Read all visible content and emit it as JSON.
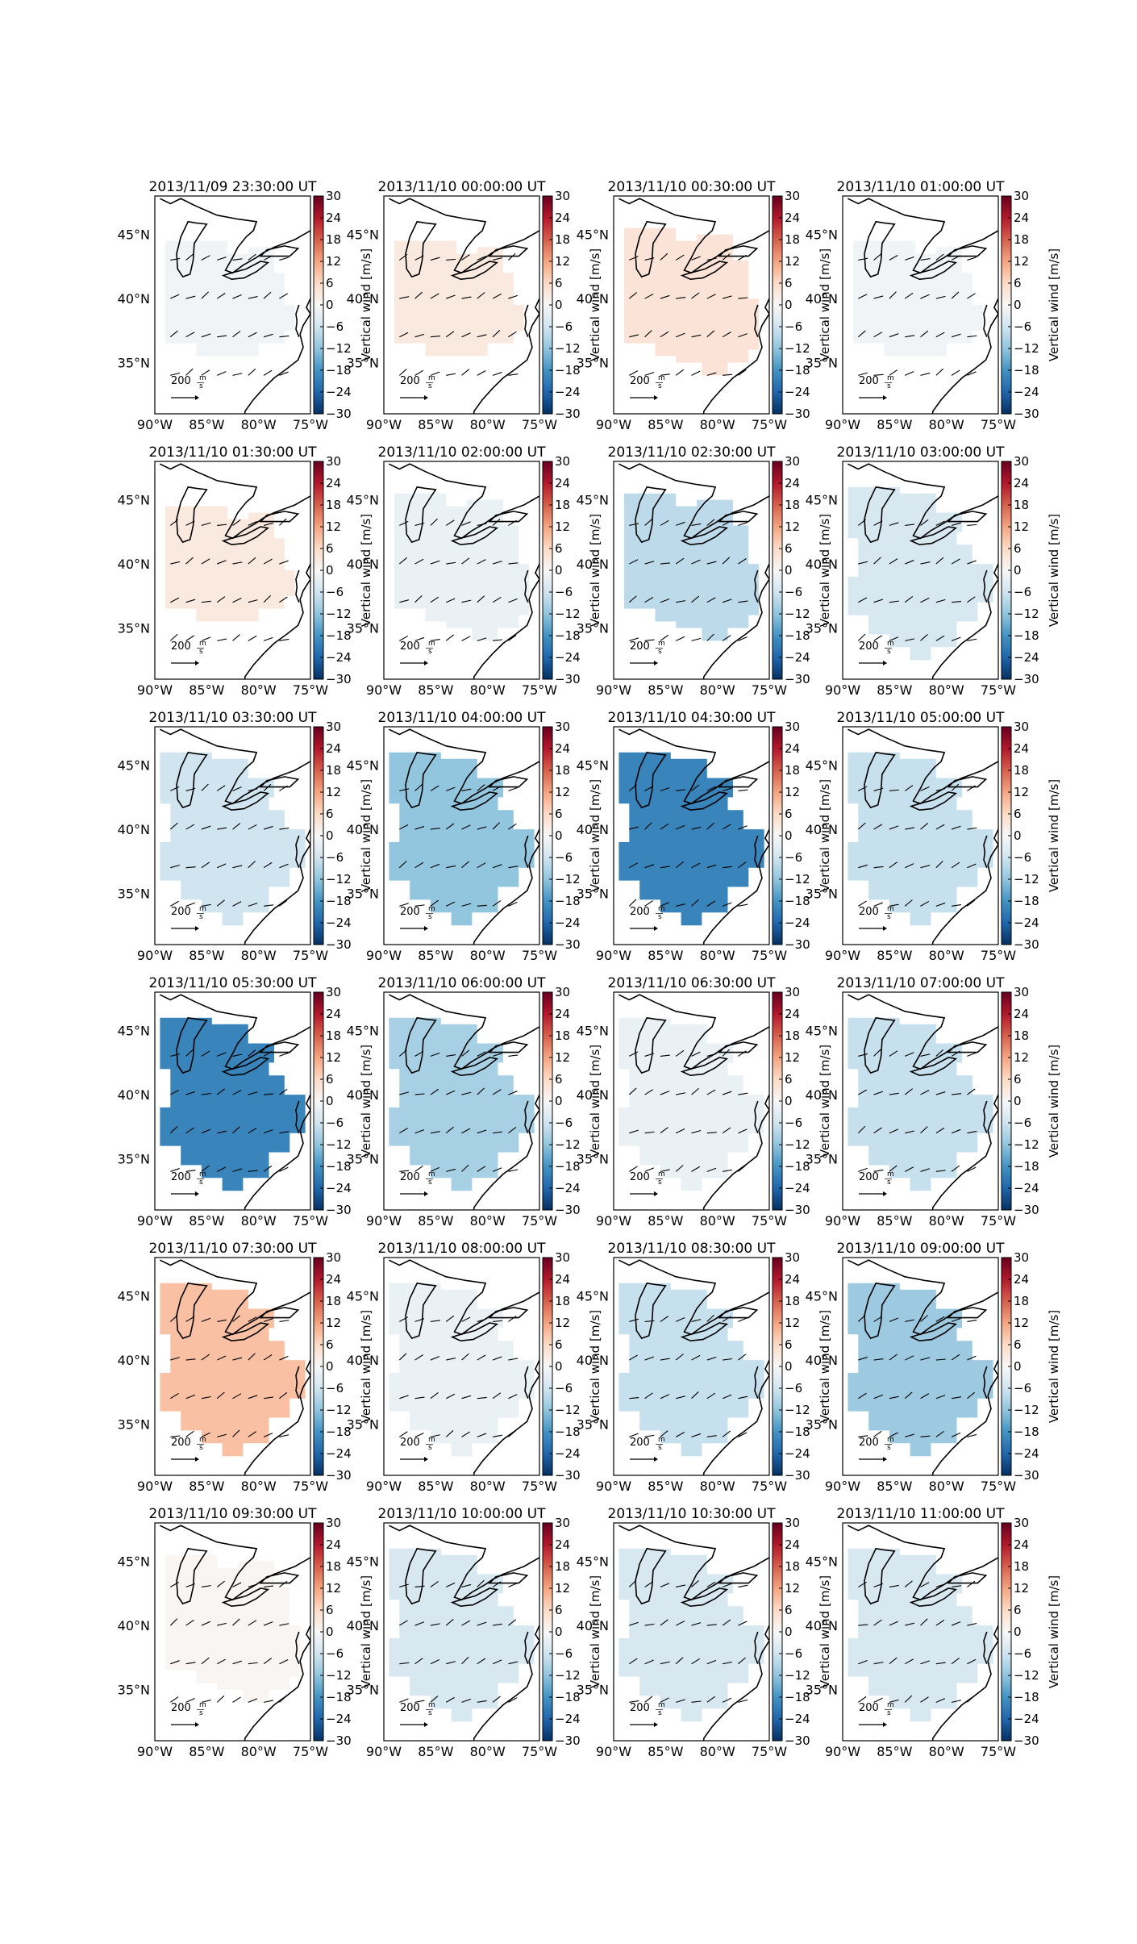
{
  "chart_data": {
    "type": "heatmap",
    "grid": {
      "rows": 6,
      "cols": 4
    },
    "map": {
      "lon_range": [
        -90,
        -75
      ],
      "lat_range": [
        31,
        48
      ],
      "x_ticks": [
        "90°W",
        "85°W",
        "80°W",
        "75°W"
      ],
      "y_ticks": [
        "45°N",
        "40°N",
        "35°N"
      ]
    },
    "colorbar": {
      "label": "Vertical wind [m/s]",
      "range": [
        -30,
        30
      ],
      "ticks": [
        "30",
        "24",
        "18",
        "12",
        "6",
        "0",
        "−6",
        "−12",
        "−18",
        "−24",
        "−30"
      ],
      "colormap": "RdBu_r"
    },
    "quiver_key": {
      "value": "200",
      "unit_num": "m",
      "unit_den": "s"
    },
    "panels": [
      {
        "title": "2013/11/09 23:30:00 UT",
        "vertical_wind": -1,
        "region": "small"
      },
      {
        "title": "2013/11/10 00:00:00 UT",
        "vertical_wind": 3,
        "region": "small"
      },
      {
        "title": "2013/11/10 00:30:00 UT",
        "vertical_wind": 4,
        "region": "medium"
      },
      {
        "title": "2013/11/10 01:00:00 UT",
        "vertical_wind": -1,
        "region": "small"
      },
      {
        "title": "2013/11/10 01:30:00 UT",
        "vertical_wind": 3,
        "region": "small"
      },
      {
        "title": "2013/11/10 02:00:00 UT",
        "vertical_wind": -2,
        "region": "medium"
      },
      {
        "title": "2013/11/10 02:30:00 UT",
        "vertical_wind": -8,
        "region": "medium"
      },
      {
        "title": "2013/11/10 03:00:00 UT",
        "vertical_wind": -5,
        "region": "large"
      },
      {
        "title": "2013/11/10 03:30:00 UT",
        "vertical_wind": -6,
        "region": "large"
      },
      {
        "title": "2013/11/10 04:00:00 UT",
        "vertical_wind": -12,
        "region": "large"
      },
      {
        "title": "2013/11/10 04:30:00 UT",
        "vertical_wind": -20,
        "region": "large"
      },
      {
        "title": "2013/11/10 05:00:00 UT",
        "vertical_wind": -7,
        "region": "large"
      },
      {
        "title": "2013/11/10 05:30:00 UT",
        "vertical_wind": -20,
        "region": "large"
      },
      {
        "title": "2013/11/10 06:00:00 UT",
        "vertical_wind": -10,
        "region": "large"
      },
      {
        "title": "2013/11/10 06:30:00 UT",
        "vertical_wind": -2,
        "region": "large"
      },
      {
        "title": "2013/11/10 07:00:00 UT",
        "vertical_wind": -7,
        "region": "large"
      },
      {
        "title": "2013/11/10 07:30:00 UT",
        "vertical_wind": 9,
        "region": "large"
      },
      {
        "title": "2013/11/10 08:00:00 UT",
        "vertical_wind": -2,
        "region": "large"
      },
      {
        "title": "2013/11/10 08:30:00 UT",
        "vertical_wind": -7,
        "region": "large"
      },
      {
        "title": "2013/11/10 09:00:00 UT",
        "vertical_wind": -11,
        "region": "large"
      },
      {
        "title": "2013/11/10 09:30:00 UT",
        "vertical_wind": 0.5,
        "region": "medium"
      },
      {
        "title": "2013/11/10 10:00:00 UT",
        "vertical_wind": -5,
        "region": "large"
      },
      {
        "title": "2013/11/10 10:30:00 UT",
        "vertical_wind": -5,
        "region": "large"
      },
      {
        "title": "2013/11/10 11:00:00 UT",
        "vertical_wind": -5,
        "region": "large"
      }
    ]
  }
}
